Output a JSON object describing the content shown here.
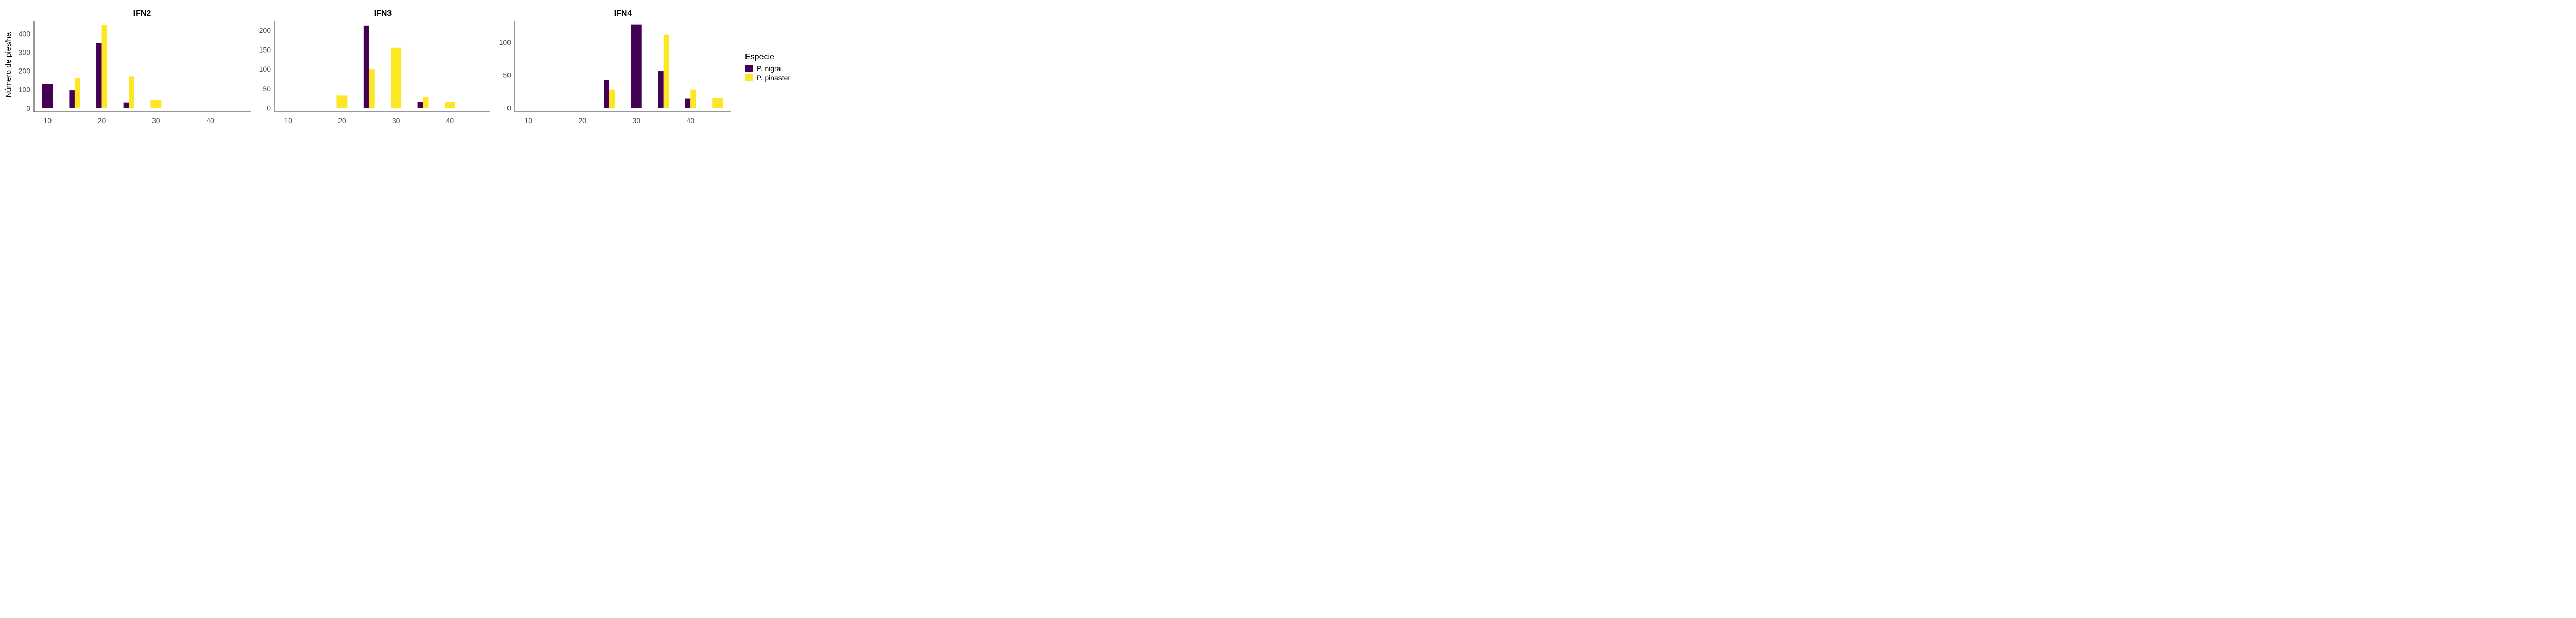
{
  "shared": {
    "ylabel": "Número de pies/ha",
    "legend_title": "Especie",
    "colors": {
      "P. nigra": "#440154",
      "P. pinaster": "#FDE725"
    }
  },
  "chart_data": [
    {
      "type": "bar",
      "title": "IFN2",
      "xlim": [
        7.5,
        47.5
      ],
      "ylim": [
        -20,
        470
      ],
      "xticks": [
        10,
        20,
        30,
        40
      ],
      "yticks": [
        0,
        100,
        200,
        300,
        400
      ],
      "series": [
        {
          "name": "P. nigra",
          "x": [
            10,
            15,
            20,
            25
          ],
          "values": [
            128,
            96,
            350,
            28
          ]
        },
        {
          "name": "P. pinaster",
          "x": [
            15,
            20,
            25,
            30
          ],
          "values": [
            160,
            445,
            170,
            42
          ]
        }
      ]
    },
    {
      "type": "bar",
      "title": "IFN3",
      "xlim": [
        7.5,
        47.5
      ],
      "ylim": [
        -10,
        225
      ],
      "xticks": [
        10,
        20,
        30,
        40
      ],
      "yticks": [
        0,
        50,
        100,
        150,
        200
      ],
      "series": [
        {
          "name": "P. nigra",
          "x": [
            25,
            35
          ],
          "values": [
            212,
            14
          ]
        },
        {
          "name": "P. pinaster",
          "x": [
            20,
            25,
            30,
            35,
            40
          ],
          "values": [
            32,
            100,
            155,
            28,
            14
          ]
        }
      ]
    },
    {
      "type": "bar",
      "title": "IFN4",
      "xlim": [
        7.5,
        47.5
      ],
      "ylim": [
        -6,
        133
      ],
      "xticks": [
        10,
        20,
        30,
        40
      ],
      "yticks": [
        0,
        50,
        100
      ],
      "series": [
        {
          "name": "P. nigra",
          "x": [
            25,
            30,
            35,
            40
          ],
          "values": [
            42,
            127,
            56,
            14
          ]
        },
        {
          "name": "P. pinaster",
          "x": [
            25,
            35,
            40,
            45
          ],
          "values": [
            28,
            112,
            28,
            15
          ]
        }
      ]
    }
  ]
}
